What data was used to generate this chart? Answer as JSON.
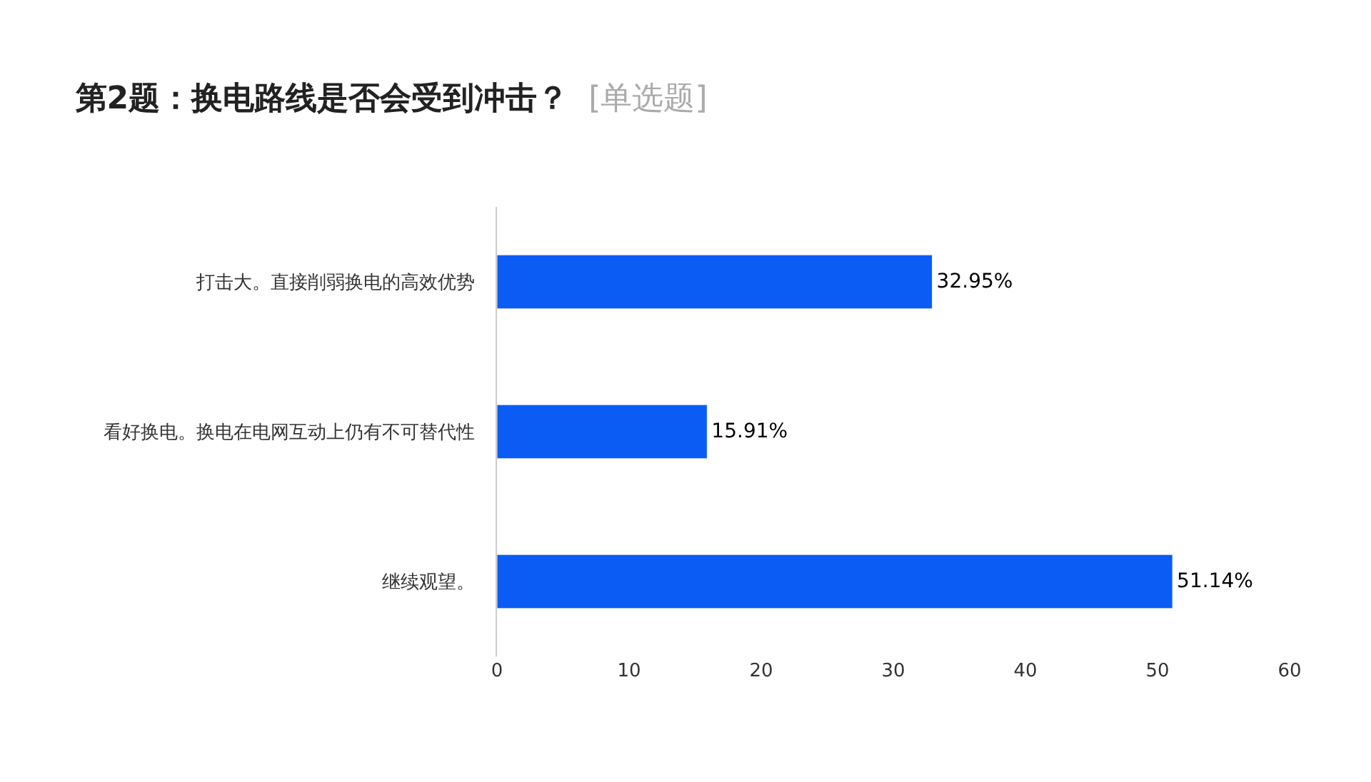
{
  "chart_data": {
    "type": "bar",
    "orientation": "horizontal",
    "title": "第2题：换电路线是否会受到冲击？",
    "subtitle": "[单选题]",
    "categories": [
      "打击大。直接削弱换电的高效优势",
      "看好换电。换电在电网互动上仍有不可替代性",
      "继续观望。"
    ],
    "values": [
      32.95,
      15.91,
      51.14
    ],
    "value_labels": [
      "32.95%",
      "15.91%",
      "51.14%"
    ],
    "color": "#0a5cf5",
    "xlim": [
      0,
      60
    ],
    "xticks": [
      0,
      10,
      20,
      30,
      40,
      50,
      60
    ]
  }
}
